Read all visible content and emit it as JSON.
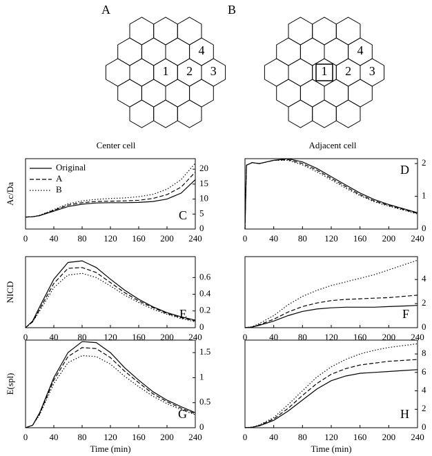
{
  "diagrams": [
    {
      "label": "A",
      "cells": [
        "1",
        "2",
        "3",
        "4"
      ]
    },
    {
      "label": "B",
      "cells": [
        "1",
        "2",
        "3",
        "4"
      ]
    }
  ],
  "column_titles": [
    "Center cell",
    "Adjacent cell"
  ],
  "chart_data": [
    {
      "type": "line",
      "label": "C",
      "ylabel": "Ac/Da",
      "legend": "upper left",
      "x": [
        0,
        10,
        20,
        40,
        60,
        80,
        100,
        120,
        140,
        160,
        180,
        200,
        220,
        240
      ],
      "xlim": [
        0,
        240
      ],
      "xticks": [
        0,
        40,
        80,
        120,
        160,
        200,
        240
      ],
      "ylim": [
        0,
        23.5
      ],
      "yticks": [
        0,
        5,
        10,
        15,
        20
      ],
      "series": [
        {
          "name": "Original",
          "color": "#000",
          "style": "solid",
          "values": [
            4,
            4.1,
            4.5,
            6,
            7.5,
            8.3,
            8.7,
            8.8,
            8.8,
            8.9,
            9.2,
            10,
            12,
            16.5
          ]
        },
        {
          "name": "A",
          "color": "#000",
          "style": "dashed",
          "values": [
            4,
            4.1,
            4.5,
            6.3,
            8,
            8.8,
            9.2,
            9.3,
            9.4,
            9.6,
            10.2,
            11.5,
            14,
            19
          ]
        },
        {
          "name": "B",
          "color": "#000",
          "style": "dotted",
          "values": [
            4,
            4.1,
            4.6,
            6.5,
            8.4,
            9.4,
            9.9,
            10.2,
            10.4,
            10.8,
            11.6,
            13.3,
            16.5,
            22
          ]
        }
      ]
    },
    {
      "type": "line",
      "label": "D",
      "x": [
        0,
        2,
        10,
        20,
        40,
        60,
        80,
        100,
        120,
        140,
        160,
        180,
        200,
        240
      ],
      "xlim": [
        0,
        240
      ],
      "xticks": [
        0,
        40,
        80,
        120,
        160,
        200,
        240
      ],
      "ylim": [
        0,
        2.15
      ],
      "yticks": [
        0,
        1,
        2
      ],
      "series": [
        {
          "color": "#000",
          "style": "solid",
          "values": [
            0,
            1.95,
            2.03,
            2.0,
            2.1,
            2.15,
            2.05,
            1.85,
            1.6,
            1.35,
            1.1,
            0.9,
            0.75,
            0.5
          ]
        },
        {
          "color": "#000",
          "style": "dashed",
          "values": [
            0,
            1.95,
            2.03,
            2.0,
            2.1,
            2.12,
            2.0,
            1.8,
            1.55,
            1.3,
            1.05,
            0.86,
            0.72,
            0.48
          ]
        },
        {
          "color": "#000",
          "style": "dotted",
          "values": [
            0,
            1.95,
            2.03,
            2.0,
            2.1,
            2.1,
            1.96,
            1.75,
            1.5,
            1.25,
            1.02,
            0.83,
            0.7,
            0.46
          ]
        }
      ]
    },
    {
      "type": "line",
      "label": "E",
      "ylabel": "NICD",
      "x": [
        0,
        10,
        20,
        40,
        60,
        80,
        100,
        120,
        140,
        160,
        180,
        200,
        220,
        240
      ],
      "xlim": [
        0,
        240
      ],
      "xticks": [
        0,
        40,
        80,
        120,
        160,
        200,
        240
      ],
      "ylim": [
        0,
        0.85
      ],
      "yticks": [
        0,
        0.2,
        0.4,
        0.6
      ],
      "series": [
        {
          "color": "#000",
          "style": "solid",
          "values": [
            0,
            0.08,
            0.25,
            0.58,
            0.78,
            0.8,
            0.72,
            0.58,
            0.45,
            0.34,
            0.25,
            0.18,
            0.13,
            0.09
          ]
        },
        {
          "color": "#000",
          "style": "dashed",
          "values": [
            0,
            0.07,
            0.22,
            0.53,
            0.71,
            0.72,
            0.66,
            0.54,
            0.42,
            0.32,
            0.24,
            0.17,
            0.12,
            0.08
          ]
        },
        {
          "color": "#000",
          "style": "dotted",
          "values": [
            0,
            0.07,
            0.2,
            0.48,
            0.63,
            0.65,
            0.6,
            0.5,
            0.39,
            0.3,
            0.22,
            0.16,
            0.11,
            0.07
          ]
        }
      ]
    },
    {
      "type": "line",
      "label": "F",
      "x": [
        0,
        10,
        20,
        40,
        60,
        80,
        100,
        120,
        140,
        160,
        180,
        200,
        220,
        240
      ],
      "xlim": [
        0,
        240
      ],
      "xticks": [
        0,
        40,
        80,
        120,
        160,
        200,
        240
      ],
      "ylim": [
        0,
        5.9
      ],
      "yticks": [
        0,
        2,
        4
      ],
      "series": [
        {
          "color": "#000",
          "style": "solid",
          "values": [
            0,
            0.05,
            0.2,
            0.55,
            1.0,
            1.35,
            1.55,
            1.65,
            1.7,
            1.7,
            1.7,
            1.75,
            1.8,
            1.85
          ]
        },
        {
          "color": "#000",
          "style": "dashed",
          "values": [
            0,
            0.06,
            0.25,
            0.7,
            1.3,
            1.75,
            2.05,
            2.25,
            2.35,
            2.4,
            2.45,
            2.5,
            2.6,
            2.7
          ]
        },
        {
          "color": "#000",
          "style": "dotted",
          "values": [
            0,
            0.08,
            0.35,
            1.0,
            1.9,
            2.6,
            3.1,
            3.5,
            3.8,
            4.1,
            4.4,
            4.8,
            5.2,
            5.6
          ]
        }
      ]
    },
    {
      "type": "line",
      "label": "G",
      "ylabel": "E(spl)",
      "xlabel": "Time (min)",
      "x": [
        0,
        10,
        20,
        40,
        60,
        80,
        100,
        120,
        140,
        160,
        180,
        200,
        220,
        240
      ],
      "xlim": [
        0,
        240
      ],
      "xticks": [
        0,
        40,
        80,
        120,
        160,
        200,
        240
      ],
      "ylim": [
        0,
        1.75
      ],
      "yticks": [
        0,
        0.5,
        1,
        1.5
      ],
      "series": [
        {
          "color": "#000",
          "style": "solid",
          "values": [
            0,
            0.05,
            0.3,
            1.0,
            1.5,
            1.72,
            1.7,
            1.5,
            1.2,
            0.95,
            0.72,
            0.55,
            0.42,
            0.3
          ]
        },
        {
          "color": "#000",
          "style": "dashed",
          "values": [
            0,
            0.05,
            0.28,
            0.95,
            1.42,
            1.6,
            1.58,
            1.4,
            1.13,
            0.9,
            0.68,
            0.52,
            0.39,
            0.28
          ]
        },
        {
          "color": "#000",
          "style": "dotted",
          "values": [
            0,
            0.05,
            0.26,
            0.88,
            1.3,
            1.44,
            1.42,
            1.27,
            1.03,
            0.82,
            0.63,
            0.48,
            0.36,
            0.26
          ]
        }
      ]
    },
    {
      "type": "line",
      "label": "H",
      "xlabel": "Time (min)",
      "x": [
        0,
        10,
        20,
        40,
        60,
        80,
        100,
        120,
        140,
        160,
        180,
        200,
        220,
        240
      ],
      "xlim": [
        0,
        240
      ],
      "xticks": [
        0,
        40,
        80,
        120,
        160,
        200,
        240
      ],
      "ylim": [
        0,
        9.5
      ],
      "yticks": [
        0,
        2,
        4,
        6,
        8
      ],
      "series": [
        {
          "color": "#000",
          "style": "solid",
          "values": [
            0,
            0.05,
            0.2,
            0.8,
            1.8,
            3.0,
            4.2,
            5.1,
            5.6,
            5.9,
            6.0,
            6.1,
            6.2,
            6.3
          ]
        },
        {
          "color": "#000",
          "style": "dashed",
          "values": [
            0,
            0.05,
            0.25,
            0.95,
            2.1,
            3.5,
            4.8,
            5.8,
            6.4,
            6.8,
            7.0,
            7.2,
            7.3,
            7.4
          ]
        },
        {
          "color": "#000",
          "style": "dotted",
          "values": [
            0,
            0.06,
            0.3,
            1.1,
            2.5,
            4.0,
            5.5,
            6.6,
            7.4,
            8.0,
            8.4,
            8.7,
            8.9,
            9.1
          ]
        }
      ]
    }
  ]
}
